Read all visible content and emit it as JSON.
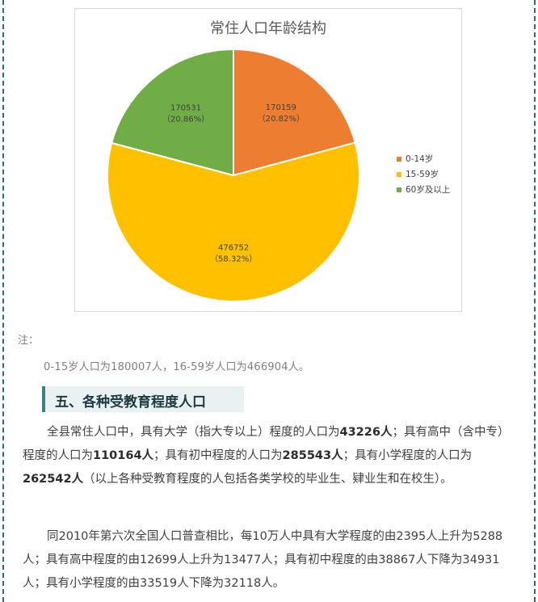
{
  "chart_data": {
    "type": "pie",
    "title": "常住人口年龄结构",
    "series": [
      {
        "name": "0-14岁",
        "value": 170159,
        "percent_label": "（20.82%）",
        "color": "#ed7d31"
      },
      {
        "name": "15-59岁",
        "value": 476752,
        "percent_label": "（58.32%）",
        "color": "#ffc000"
      },
      {
        "name": "60岁及以上",
        "value": 170531,
        "percent_label": "（20.86%）",
        "color": "#70ad47"
      }
    ],
    "legend_position": "right"
  },
  "note": {
    "label": "注：",
    "text": "0-15岁人口为180007人，16-59岁人口为466904人。"
  },
  "section": {
    "title": "五、各种受教育程度人口"
  },
  "paragraph1": {
    "t1": "全县常住人口中，具有大学（指大专以上）程度的人口为",
    "b1": "43226人",
    "t2": "；具有高中（含中专）程度的人口为",
    "b2": "110164人",
    "t3": "；具有初中程度的人口为",
    "b3": "285543人",
    "t4": "；具有小学程度的人口为",
    "b4": "262542人",
    "t5": "（以上各种受教育程度的人包括各类学校的毕业生、肄业生和在校生）。"
  },
  "paragraph2": {
    "text": "同2010年第六次全国人口普查相比，每10万人中具有大学程度的由2395人上升为5288人；具有高中程度的由12699人上升为13477人；具有初中程度的由38867人下降为34931人；具有小学程度的由33519人下降为32118人。"
  }
}
